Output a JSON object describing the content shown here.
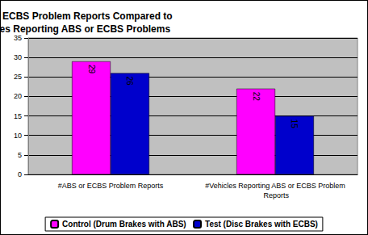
{
  "chart_data": {
    "type": "bar",
    "title": "ABS or ECBS Problem Reports Compared to Vehicles Reporting ABS or ECBS Problems",
    "categories": [
      "#ABS or ECBS Problem Reports",
      "#Vehicles Reporting ABS or ECBS Problem Reports"
    ],
    "series": [
      {
        "name": "Control (Drum Brakes with ABS)",
        "color": "#ff00ff",
        "values": [
          29,
          22
        ]
      },
      {
        "name": "Test (Disc Brakes with ECBS)",
        "color": "#0000cc",
        "values": [
          26,
          15
        ]
      }
    ],
    "ylim": [
      0,
      35
    ],
    "yticks": [
      0,
      5,
      10,
      15,
      20,
      25,
      30,
      35
    ],
    "grid": true,
    "legend": "bottom",
    "data_labels": true
  }
}
